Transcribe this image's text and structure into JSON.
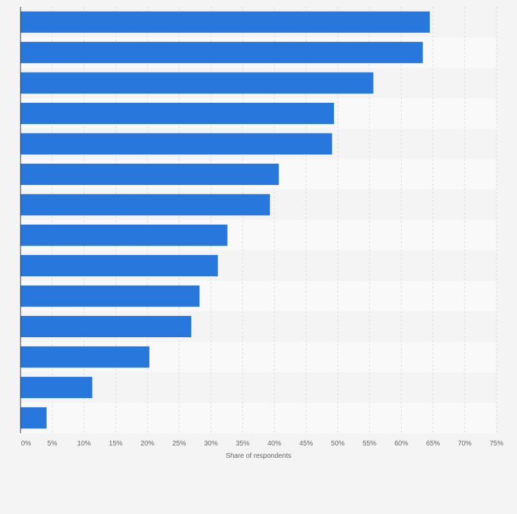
{
  "chart_data": {
    "type": "bar",
    "orientation": "horizontal",
    "title": "",
    "xlabel": "Share of respondents",
    "ylabel": "",
    "categories": [
      "",
      "",
      "",
      "",
      "",
      "",
      "",
      "",
      "",
      "",
      "",
      "",
      "",
      ""
    ],
    "values": [
      64.5,
      63.4,
      55.6,
      49.4,
      49.1,
      40.7,
      39.3,
      32.6,
      31.1,
      28.2,
      26.9,
      20.3,
      11.3,
      4.1
    ],
    "xlim": [
      0,
      75
    ],
    "ticks": [
      0,
      5,
      10,
      15,
      20,
      25,
      30,
      35,
      40,
      45,
      50,
      55,
      60,
      65,
      70,
      75
    ],
    "tick_labels": [
      "0%",
      "5%",
      "10%",
      "15%",
      "20%",
      "25%",
      "30%",
      "35%",
      "40%",
      "45%",
      "50%",
      "55%",
      "60%",
      "65%",
      "70%",
      "75%"
    ],
    "grid": true,
    "legend": "none",
    "bar_color": "#2877dc",
    "band_colors": [
      "#f4f4f5",
      "#f9f9fa"
    ],
    "gridline_color": "#dcdcdc",
    "axis_color": "#333333"
  }
}
